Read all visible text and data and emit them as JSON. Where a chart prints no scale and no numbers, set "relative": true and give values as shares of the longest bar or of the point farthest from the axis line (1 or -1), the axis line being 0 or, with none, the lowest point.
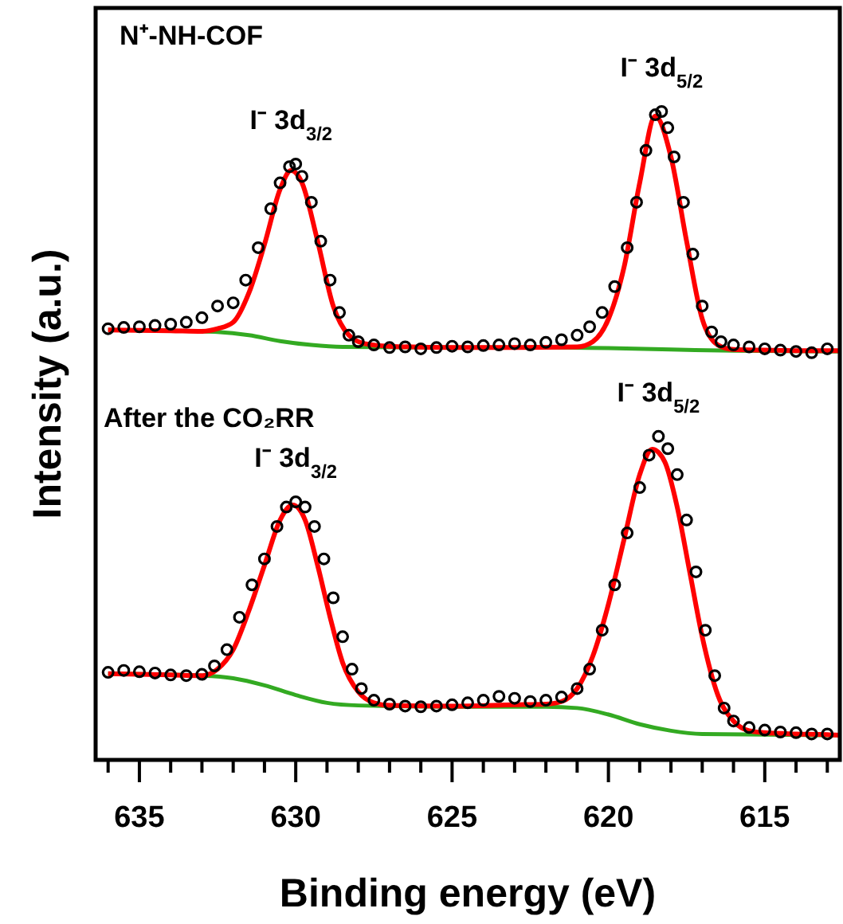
{
  "chart_data": {
    "type": "line",
    "relative": true,
    "xlabel": "Binding energy (eV)",
    "ylabel": "Intensity (a.u.)",
    "xlim": [
      636.4,
      612.6
    ],
    "xticks": [
      {
        "value": 636,
        "label": null
      },
      635,
      {
        "value": 634,
        "label": null
      },
      {
        "value": 633,
        "label": null
      },
      {
        "value": 632,
        "label": null
      },
      {
        "value": 631,
        "label": null
      },
      630,
      {
        "value": 629,
        "label": null
      },
      {
        "value": 628,
        "label": null
      },
      {
        "value": 627,
        "label": null
      },
      {
        "value": 626,
        "label": null
      },
      625,
      {
        "value": 624,
        "label": null
      },
      {
        "value": 623,
        "label": null
      },
      {
        "value": 622,
        "label": null
      },
      {
        "value": 621,
        "label": null
      },
      620,
      {
        "value": 619,
        "label": null
      },
      {
        "value": 618,
        "label": null
      },
      {
        "value": 617,
        "label": null
      },
      {
        "value": 616,
        "label": null
      },
      615,
      {
        "value": 614,
        "label": null
      },
      {
        "value": 613,
        "label": null
      }
    ],
    "series": [
      {
        "type": "scatter",
        "marker": "circle",
        "color": "#000000",
        "x": [
          636.0,
          635.5,
          635,
          634.5,
          634,
          633.5,
          633,
          632.5,
          632,
          631.6,
          631.2,
          630.8,
          630.5,
          630.2,
          630.0,
          629.8,
          629.5,
          629.2,
          628.9,
          628.6,
          628.3,
          628,
          627.5,
          627,
          626.5,
          626,
          625.5,
          625,
          624.5,
          624,
          623.5,
          623,
          622.5,
          622,
          621.5,
          621,
          620.6,
          620.2,
          619.8,
          619.4,
          619.1,
          618.8,
          618.5,
          618.3,
          618.1,
          617.9,
          617.6,
          617.3,
          617.0,
          616.7,
          616.4,
          616,
          615.5,
          615,
          614.5,
          614,
          613.5,
          613
        ],
        "values": [
          0.665,
          0.667,
          0.668,
          0.67,
          0.672,
          0.675,
          0.682,
          0.7,
          0.705,
          0.74,
          0.79,
          0.85,
          0.89,
          0.915,
          0.919,
          0.9,
          0.86,
          0.8,
          0.74,
          0.69,
          0.655,
          0.645,
          0.64,
          0.636,
          0.637,
          0.634,
          0.636,
          0.638,
          0.637,
          0.639,
          0.64,
          0.642,
          0.64,
          0.644,
          0.648,
          0.655,
          0.668,
          0.69,
          0.73,
          0.79,
          0.86,
          0.94,
          0.995,
          1.0,
          0.975,
          0.93,
          0.86,
          0.78,
          0.7,
          0.66,
          0.645,
          0.64,
          0.637,
          0.634,
          0.632,
          0.63,
          0.628,
          0.634
        ]
      },
      {
        "color": "#33aa22",
        "x": [
          636,
          634,
          632.5,
          631.5,
          630.5,
          629.5,
          628.5,
          625,
          622,
          620,
          618,
          616,
          612.6
        ],
        "values": [
          0.663,
          0.662,
          0.66,
          0.655,
          0.646,
          0.64,
          0.637,
          0.636,
          0.636,
          0.635,
          0.633,
          0.631,
          0.63
        ]
      },
      {
        "color": "#ff0000",
        "x": [
          636,
          634,
          633,
          632.5,
          632,
          631.5,
          631,
          630.5,
          630.15,
          629.8,
          629.3,
          628.8,
          628.3,
          627.8,
          627,
          625,
          623,
          621,
          620.5,
          620,
          619.5,
          619,
          618.5,
          618,
          617.5,
          617,
          616.5,
          616,
          615,
          613.5,
          612.6
        ],
        "values": [
          0.663,
          0.662,
          0.661,
          0.665,
          0.675,
          0.72,
          0.795,
          0.88,
          0.909,
          0.89,
          0.8,
          0.7,
          0.655,
          0.642,
          0.638,
          0.636,
          0.636,
          0.637,
          0.645,
          0.68,
          0.76,
          0.89,
          0.993,
          0.93,
          0.8,
          0.68,
          0.64,
          0.633,
          0.632,
          0.631,
          0.631
        ]
      },
      {
        "type": "scatter",
        "marker": "circle",
        "color": "#000000",
        "x": [
          636,
          635.5,
          635,
          634.5,
          634,
          633.5,
          633,
          632.6,
          632.2,
          631.8,
          631.4,
          631,
          630.6,
          630.3,
          630,
          629.7,
          629.4,
          629.1,
          628.8,
          628.5,
          628.2,
          627.9,
          627.5,
          627,
          626.5,
          626,
          625.5,
          625,
          624.5,
          624,
          623.5,
          623,
          622.5,
          622,
          621.5,
          621,
          620.6,
          620.2,
          619.8,
          619.4,
          619,
          618.7,
          618.4,
          618.1,
          617.8,
          617.5,
          617.2,
          616.9,
          616.6,
          616.3,
          616,
          615.5,
          615,
          614.5,
          614,
          613.5,
          613
        ],
        "values": [
          0.135,
          0.138,
          0.136,
          0.134,
          0.131,
          0.13,
          0.132,
          0.145,
          0.17,
          0.22,
          0.27,
          0.31,
          0.36,
          0.39,
          0.398,
          0.39,
          0.36,
          0.31,
          0.25,
          0.19,
          0.14,
          0.11,
          0.092,
          0.086,
          0.083,
          0.082,
          0.083,
          0.085,
          0.088,
          0.092,
          0.098,
          0.095,
          0.09,
          0.092,
          0.097,
          0.11,
          0.14,
          0.2,
          0.27,
          0.35,
          0.42,
          0.47,
          0.499,
          0.48,
          0.44,
          0.37,
          0.29,
          0.2,
          0.13,
          0.08,
          0.06,
          0.05,
          0.046,
          0.043,
          0.042,
          0.04,
          0.04
        ]
      },
      {
        "color": "#33aa22",
        "x": [
          636,
          633,
          632,
          631,
          630,
          629,
          628,
          625,
          622,
          621,
          620,
          619,
          618,
          617,
          612.6
        ],
        "values": [
          0.133,
          0.13,
          0.126,
          0.115,
          0.1,
          0.088,
          0.084,
          0.082,
          0.082,
          0.08,
          0.07,
          0.055,
          0.045,
          0.04,
          0.038
        ]
      },
      {
        "color": "#ff0000",
        "x": [
          636,
          634,
          633,
          632.5,
          632,
          631.5,
          631,
          630.5,
          630.1,
          629.7,
          629.3,
          628.9,
          628.5,
          628,
          627.5,
          627,
          625,
          623,
          622,
          621.5,
          621,
          620.5,
          620,
          619.5,
          619,
          618.6,
          618.2,
          617.8,
          617.4,
          617,
          616.5,
          616,
          615.5,
          615,
          614,
          613,
          612.6
        ],
        "values": [
          0.133,
          0.131,
          0.13,
          0.14,
          0.17,
          0.23,
          0.3,
          0.37,
          0.393,
          0.37,
          0.3,
          0.22,
          0.15,
          0.105,
          0.088,
          0.084,
          0.083,
          0.085,
          0.086,
          0.09,
          0.11,
          0.16,
          0.24,
          0.34,
          0.44,
          0.479,
          0.46,
          0.39,
          0.29,
          0.19,
          0.1,
          0.06,
          0.045,
          0.042,
          0.04,
          0.039,
          0.038
        ]
      }
    ],
    "annotations": [
      "N⁺-NH-COF",
      "After the CO₂RR",
      {
        "text": "I⁻ 3d$_{3/2}$",
        "x": 630.15,
        "y": 0.919
      },
      {
        "text": "I⁻ 3d$_{5/2}$",
        "x": 618.3,
        "y": 1.0
      },
      {
        "text": "I⁻ 3d$_{3/2}$",
        "x": 630.0,
        "y": 0.398
      },
      {
        "text": "I⁻ 3d$_{5/2}$",
        "x": 618.4,
        "y": 0.499
      }
    ]
  }
}
